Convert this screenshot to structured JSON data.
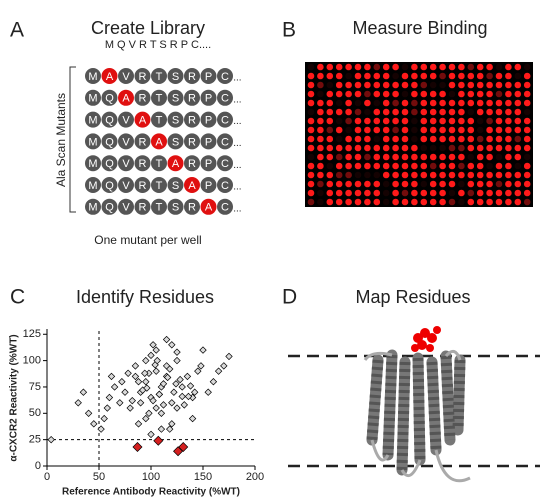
{
  "panel_a": {
    "letter": "A",
    "title": "Create Library",
    "header_sequence": "M Q V R T S R P C....",
    "rows": [
      {
        "residues": [
          "M",
          "A",
          "V",
          "R",
          "T",
          "S",
          "R",
          "P",
          "C"
        ],
        "mutated": 1
      },
      {
        "residues": [
          "M",
          "Q",
          "A",
          "R",
          "T",
          "S",
          "R",
          "P",
          "C"
        ],
        "mutated": 2
      },
      {
        "residues": [
          "M",
          "Q",
          "V",
          "A",
          "T",
          "S",
          "R",
          "P",
          "C"
        ],
        "mutated": 3
      },
      {
        "residues": [
          "M",
          "Q",
          "V",
          "R",
          "A",
          "S",
          "R",
          "P",
          "C"
        ],
        "mutated": 4
      },
      {
        "residues": [
          "M",
          "Q",
          "V",
          "R",
          "T",
          "A",
          "R",
          "P",
          "C"
        ],
        "mutated": 5
      },
      {
        "residues": [
          "M",
          "Q",
          "V",
          "R",
          "T",
          "S",
          "A",
          "P",
          "C"
        ],
        "mutated": 6
      },
      {
        "residues": [
          "M",
          "Q",
          "V",
          "R",
          "T",
          "S",
          "R",
          "A",
          "C"
        ],
        "mutated": 7
      }
    ],
    "ellipsis": "...",
    "axis_label": "Ala Scan Mutants",
    "caption": "One mutant per well"
  },
  "panel_b": {
    "letter": "B",
    "title": "Measure Binding"
  },
  "chart_data": {
    "type": "scatter",
    "letter": "C",
    "title": "Identify Residues",
    "x_label": "Reference Antibody Reactivity (%WT)",
    "y_label": "α-CXCR2 Reactivity (%WT)",
    "xlim": [
      0,
      200
    ],
    "ylim": [
      0,
      130
    ],
    "xticks": [
      0,
      50,
      100,
      150,
      200
    ],
    "yticks": [
      0,
      25,
      50,
      75,
      100,
      125
    ],
    "reference_lines": {
      "x": 50,
      "y": 25
    },
    "series": [
      {
        "color": "#d9d9d9",
        "x": [
          90,
          95,
          100,
          105,
          110,
          115,
          120,
          85,
          80,
          75,
          125,
          130,
          135,
          140,
          100,
          105,
          110,
          95,
          90,
          115,
          120,
          125,
          88,
          92,
          98,
          102,
          108,
          112,
          118,
          122,
          128,
          132,
          138,
          145,
          150,
          160,
          170,
          175,
          70,
          65,
          60,
          55,
          45,
          40,
          35,
          30,
          100,
          110,
          120,
          105,
          95,
          85,
          115,
          125,
          130,
          140,
          78,
          82,
          96,
          104,
          116,
          124,
          136,
          142,
          98,
          108,
          112,
          102,
          94,
          106,
          4,
          52,
          58,
          62,
          155,
          148,
          165,
          118,
          88,
          72
        ],
        "values": [
          70,
          80,
          65,
          90,
          75,
          85,
          60,
          95,
          55,
          70,
          100,
          75,
          85,
          65,
          105,
          110,
          50,
          45,
          60,
          95,
          115,
          55,
          80,
          72,
          88,
          62,
          68,
          78,
          92,
          70,
          82,
          58,
          76,
          90,
          110,
          80,
          95,
          104,
          60,
          75,
          65,
          45,
          40,
          50,
          70,
          60,
          30,
          35,
          40,
          55,
          100,
          85,
          120,
          108,
          66,
          45,
          88,
          62,
          74,
          96,
          84,
          78,
          66,
          70,
          50,
          68,
          58,
          115,
          88,
          100,
          25,
          35,
          55,
          85,
          70,
          95,
          90,
          35,
          40,
          80
        ]
      },
      {
        "color": "#d42020",
        "x": [
          87,
          107,
          126,
          131
        ],
        "values": [
          18,
          24,
          14,
          18
        ]
      }
    ]
  },
  "panel_d": {
    "letter": "D",
    "title": "Map Residues"
  }
}
